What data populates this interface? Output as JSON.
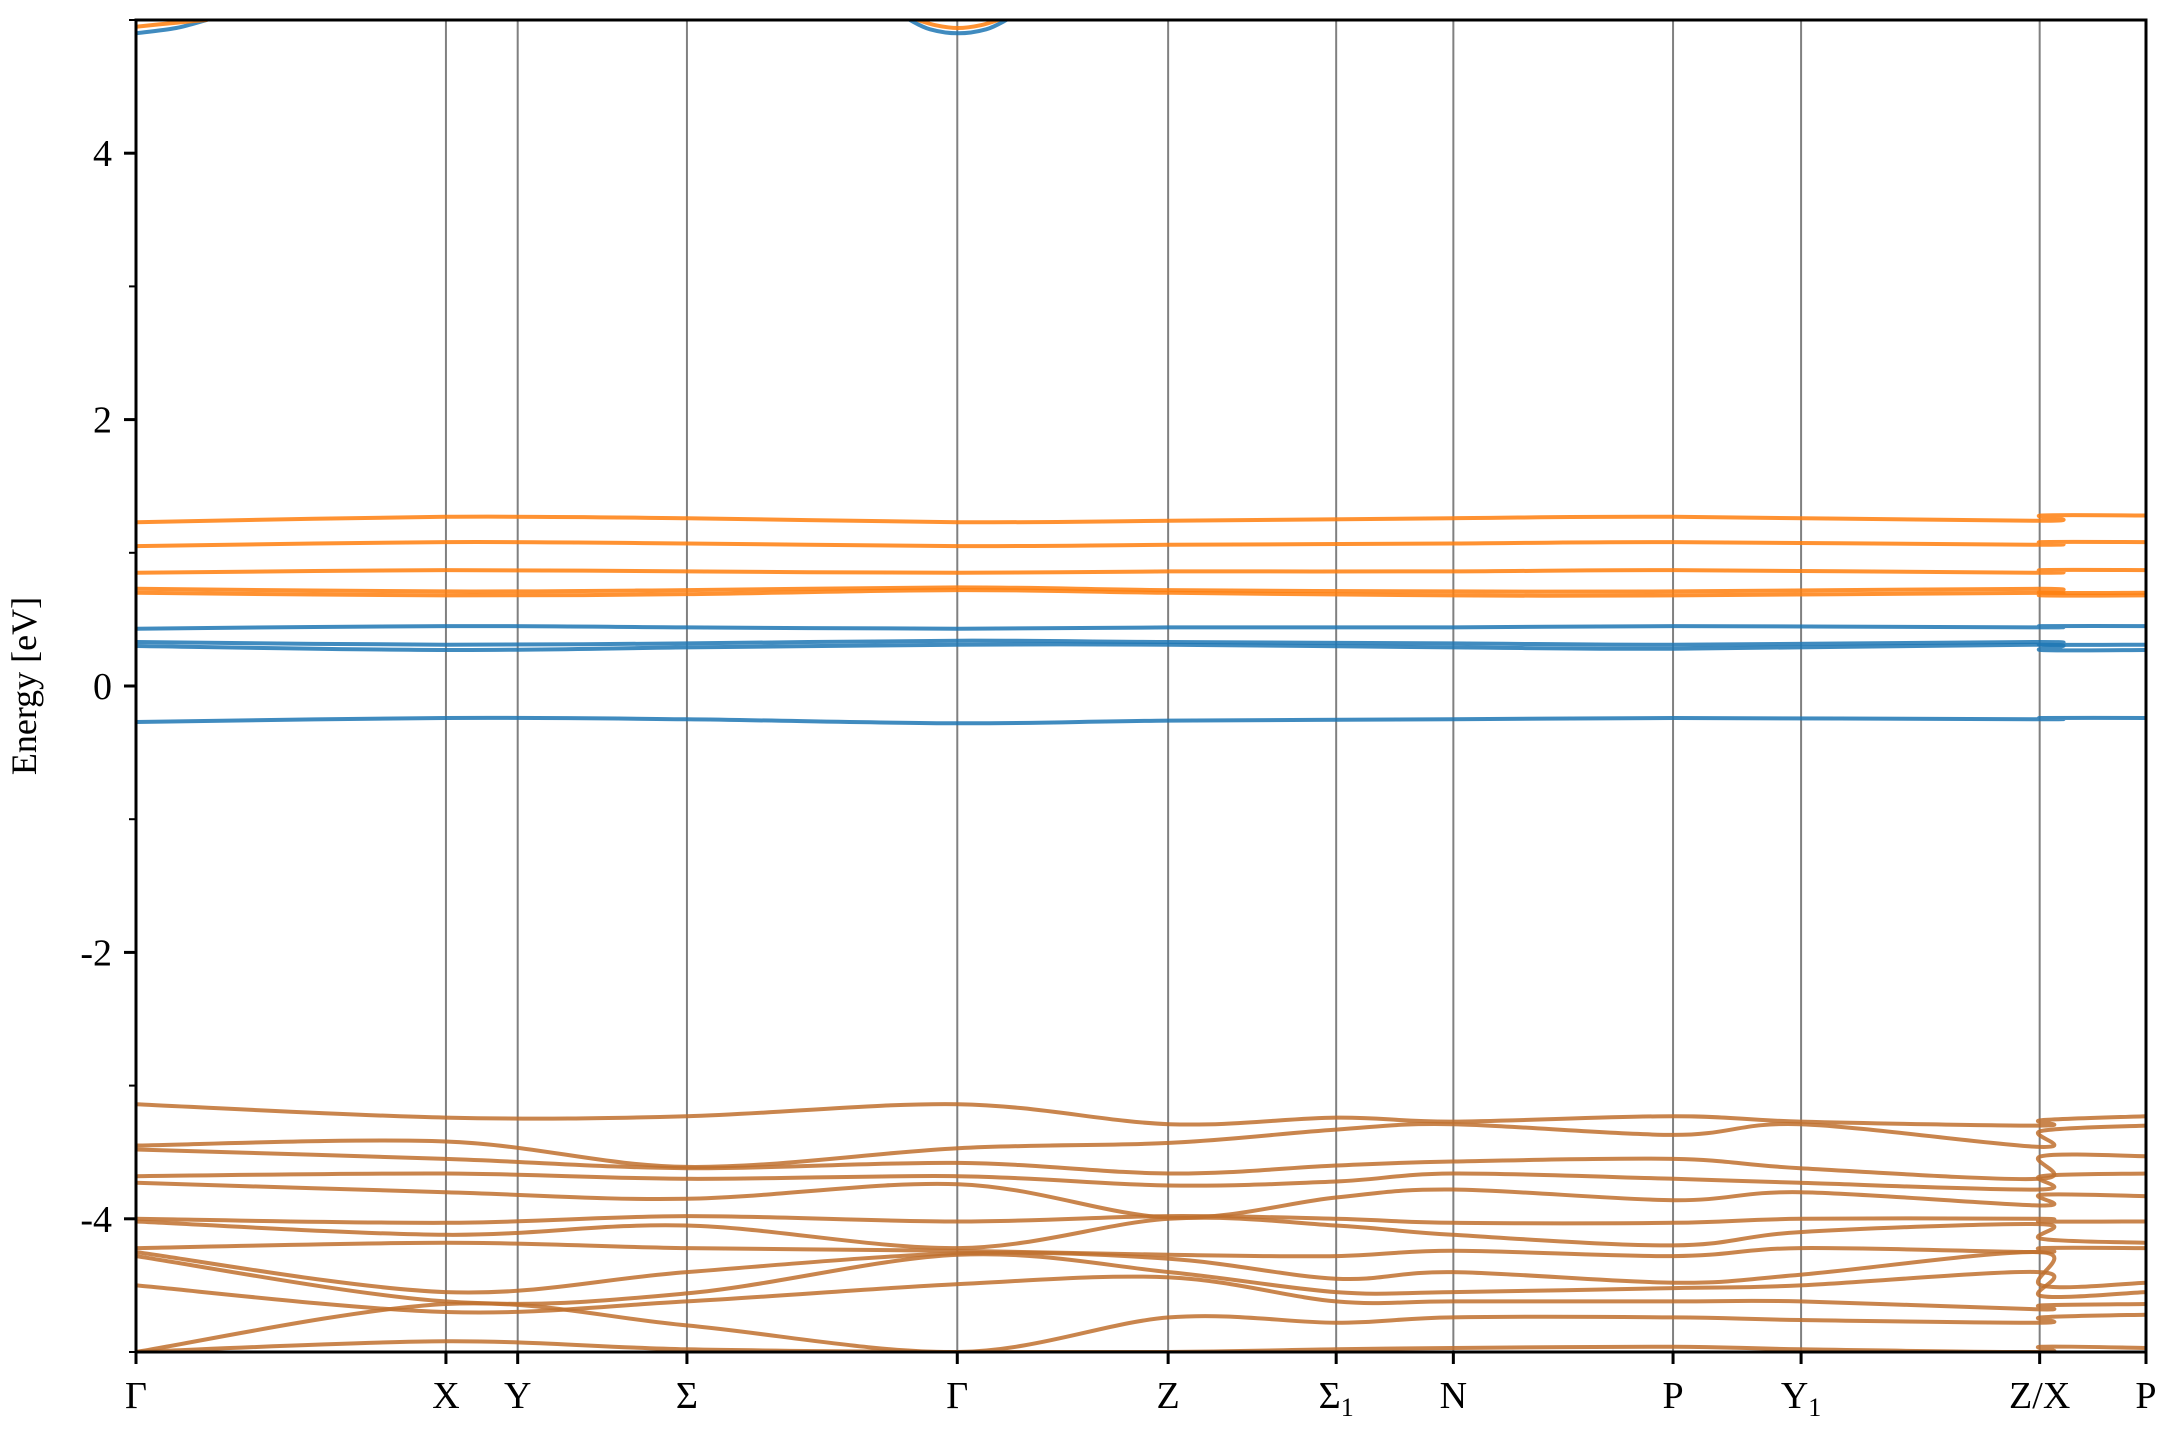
{
  "chart_data": {
    "type": "line",
    "title": "",
    "xlabel": "",
    "ylabel": "Energy [eV]",
    "ylim": [
      -5,
      5
    ],
    "y_ticks": [
      4,
      2,
      0,
      -2,
      -4
    ],
    "y_tick_labels": [
      "4",
      "2",
      "0",
      "-2",
      "-4"
    ],
    "y_minor_ticks": [
      5,
      3,
      1,
      -1,
      -3,
      -5
    ],
    "x_range": [
      0,
      1
    ],
    "x_ticks": [
      {
        "x": 0.0,
        "label": "Γ",
        "sub": ""
      },
      {
        "x": 0.1542,
        "label": "X",
        "sub": ""
      },
      {
        "x": 0.1899,
        "label": "Y",
        "sub": ""
      },
      {
        "x": 0.2741,
        "label": "Σ",
        "sub": ""
      },
      {
        "x": 0.4086,
        "label": "Γ",
        "sub": ""
      },
      {
        "x": 0.5135,
        "label": "Z",
        "sub": ""
      },
      {
        "x": 0.5971,
        "label": "Σ",
        "sub": "1"
      },
      {
        "x": 0.6554,
        "label": "N",
        "sub": ""
      },
      {
        "x": 0.7647,
        "label": "P",
        "sub": ""
      },
      {
        "x": 0.8284,
        "label": "Y",
        "sub": "1"
      },
      {
        "x": 0.9471,
        "label": "Z/X",
        "sub": ""
      },
      {
        "x": 1.0,
        "label": "P",
        "sub": ""
      }
    ],
    "grid": "vertical lines at high-symmetry points",
    "legend": "none",
    "colors": {
      "spin_up": "#1f77b4",
      "spin_down": "#ff7f0e",
      "vline": "#808080"
    },
    "series": [
      {
        "color": "#1f77b4",
        "x": [
          0,
          0.154,
          0.274,
          0.409,
          0.514,
          0.655,
          0.765,
          0.947,
          0.948,
          1.0
        ],
        "y": [
          -0.27,
          -0.24,
          -0.25,
          -0.28,
          -0.26,
          -0.25,
          -0.24,
          -0.25,
          -0.24,
          -0.24
        ]
      },
      {
        "color": "#1f77b4",
        "x": [
          0,
          0.154,
          0.274,
          0.409,
          0.514,
          0.655,
          0.765,
          0.947,
          0.948,
          1.0
        ],
        "y": [
          0.3,
          0.27,
          0.29,
          0.31,
          0.31,
          0.29,
          0.28,
          0.31,
          0.27,
          0.27
        ]
      },
      {
        "color": "#1f77b4",
        "x": [
          0,
          0.154,
          0.274,
          0.409,
          0.514,
          0.655,
          0.765,
          0.947,
          0.948,
          1.0
        ],
        "y": [
          0.33,
          0.31,
          0.32,
          0.34,
          0.33,
          0.32,
          0.31,
          0.33,
          0.31,
          0.31
        ]
      },
      {
        "color": "#1f77b4",
        "x": [
          0,
          0.154,
          0.274,
          0.409,
          0.514,
          0.655,
          0.765,
          0.947,
          0.948,
          1.0
        ],
        "y": [
          0.43,
          0.45,
          0.44,
          0.43,
          0.44,
          0.44,
          0.45,
          0.44,
          0.45,
          0.45
        ]
      },
      {
        "color": "#ff7f0e",
        "x": [
          0,
          0.154,
          0.274,
          0.409,
          0.514,
          0.655,
          0.765,
          0.947,
          0.948,
          1.0
        ],
        "y": [
          0.7,
          0.68,
          0.69,
          0.72,
          0.7,
          0.68,
          0.68,
          0.7,
          0.68,
          0.68
        ]
      },
      {
        "color": "#ff7f0e",
        "x": [
          0,
          0.154,
          0.274,
          0.409,
          0.514,
          0.655,
          0.765,
          0.947,
          0.948,
          1.0
        ],
        "y": [
          0.73,
          0.71,
          0.72,
          0.74,
          0.72,
          0.71,
          0.71,
          0.73,
          0.7,
          0.7
        ]
      },
      {
        "color": "#ff7f0e",
        "x": [
          0,
          0.154,
          0.274,
          0.409,
          0.514,
          0.655,
          0.765,
          0.947,
          0.948,
          1.0
        ],
        "y": [
          0.85,
          0.87,
          0.86,
          0.85,
          0.86,
          0.86,
          0.87,
          0.85,
          0.87,
          0.87
        ]
      },
      {
        "color": "#ff7f0e",
        "x": [
          0,
          0.154,
          0.274,
          0.409,
          0.514,
          0.655,
          0.765,
          0.947,
          0.948,
          1.0
        ],
        "y": [
          1.05,
          1.08,
          1.07,
          1.05,
          1.06,
          1.07,
          1.08,
          1.06,
          1.08,
          1.08
        ]
      },
      {
        "color": "#ff7f0e",
        "x": [
          0,
          0.154,
          0.274,
          0.409,
          0.514,
          0.655,
          0.765,
          0.947,
          0.948,
          1.0
        ],
        "y": [
          1.23,
          1.27,
          1.26,
          1.23,
          1.24,
          1.26,
          1.27,
          1.24,
          1.28,
          1.28
        ]
      },
      {
        "color": "#1f77b4",
        "x": [
          0,
          0.02,
          0.035
        ],
        "y": [
          4.9,
          4.94,
          5.0
        ]
      },
      {
        "color": "#ff7f0e",
        "x": [
          0,
          0.02,
          0.035
        ],
        "y": [
          4.95,
          4.98,
          5.0
        ]
      },
      {
        "color": "#1f77b4",
        "x": [
          0.385,
          0.395,
          0.409,
          0.423,
          0.433
        ],
        "y": [
          5.0,
          4.93,
          4.9,
          4.93,
          5.0
        ]
      },
      {
        "color": "#ff7f0e",
        "x": [
          0.389,
          0.398,
          0.409,
          0.42,
          0.429
        ],
        "y": [
          5.0,
          4.96,
          4.94,
          4.96,
          5.0
        ]
      },
      {
        "color": "#c0702e",
        "x": [
          0,
          0.154,
          0.274,
          0.409,
          0.514,
          0.597,
          0.655,
          0.765,
          0.828,
          0.947,
          0.948,
          1.0
        ],
        "y": [
          -3.14,
          -3.24,
          -3.23,
          -3.14,
          -3.29,
          -3.24,
          -3.27,
          -3.23,
          -3.27,
          -3.3,
          -3.26,
          -3.23
        ]
      },
      {
        "color": "#c0702e",
        "x": [
          0,
          0.154,
          0.274,
          0.409,
          0.514,
          0.597,
          0.655,
          0.765,
          0.828,
          0.947,
          0.948,
          1.0
        ],
        "y": [
          -3.45,
          -3.42,
          -3.61,
          -3.47,
          -3.43,
          -3.33,
          -3.29,
          -3.37,
          -3.29,
          -3.46,
          -3.34,
          -3.3
        ]
      },
      {
        "color": "#c0702e",
        "x": [
          0,
          0.154,
          0.274,
          0.409,
          0.514,
          0.597,
          0.655,
          0.765,
          0.828,
          0.947,
          0.948,
          1.0
        ],
        "y": [
          -3.48,
          -3.55,
          -3.62,
          -3.58,
          -3.66,
          -3.6,
          -3.57,
          -3.55,
          -3.62,
          -3.7,
          -3.53,
          -3.53
        ]
      },
      {
        "color": "#c0702e",
        "x": [
          0,
          0.154,
          0.274,
          0.409,
          0.514,
          0.597,
          0.655,
          0.765,
          0.828,
          0.947,
          0.948,
          1.0
        ],
        "y": [
          -3.68,
          -3.66,
          -3.7,
          -3.68,
          -3.75,
          -3.72,
          -3.66,
          -3.7,
          -3.73,
          -3.78,
          -3.68,
          -3.66
        ]
      },
      {
        "color": "#c0702e",
        "x": [
          0,
          0.154,
          0.274,
          0.409,
          0.514,
          0.597,
          0.655,
          0.765,
          0.828,
          0.947,
          0.948,
          1.0
        ],
        "y": [
          -3.73,
          -3.8,
          -3.85,
          -3.74,
          -3.99,
          -3.84,
          -3.78,
          -3.86,
          -3.8,
          -3.9,
          -3.82,
          -3.83
        ]
      },
      {
        "color": "#c0702e",
        "x": [
          0,
          0.154,
          0.274,
          0.409,
          0.514,
          0.597,
          0.655,
          0.765,
          0.828,
          0.947,
          0.948,
          1.0
        ],
        "y": [
          -4.0,
          -4.03,
          -3.98,
          -4.02,
          -3.98,
          -4.0,
          -4.03,
          -4.03,
          -4.0,
          -4.0,
          -4.02,
          -4.02
        ]
      },
      {
        "color": "#c0702e",
        "x": [
          0,
          0.154,
          0.274,
          0.409,
          0.514,
          0.597,
          0.655,
          0.765,
          0.828,
          0.947,
          0.948,
          1.0
        ],
        "y": [
          -4.02,
          -4.12,
          -4.05,
          -4.22,
          -4.0,
          -4.05,
          -4.12,
          -4.2,
          -4.1,
          -4.04,
          -4.15,
          -4.18
        ]
      },
      {
        "color": "#c0702e",
        "x": [
          0,
          0.154,
          0.274,
          0.409,
          0.514,
          0.597,
          0.655,
          0.765,
          0.828,
          0.947,
          0.948,
          1.0
        ],
        "y": [
          -4.22,
          -4.18,
          -4.22,
          -4.24,
          -4.27,
          -4.28,
          -4.24,
          -4.28,
          -4.22,
          -4.25,
          -4.22,
          -4.22
        ]
      },
      {
        "color": "#c0702e",
        "x": [
          0,
          0.154,
          0.274,
          0.409,
          0.514,
          0.597,
          0.655,
          0.765,
          0.828,
          0.947,
          0.948,
          1.0
        ],
        "y": [
          -4.25,
          -4.55,
          -4.4,
          -4.26,
          -4.3,
          -4.45,
          -4.4,
          -4.48,
          -4.42,
          -4.25,
          -4.5,
          -4.48
        ]
      },
      {
        "color": "#c0702e",
        "x": [
          0,
          0.154,
          0.274,
          0.409,
          0.514,
          0.597,
          0.655,
          0.765,
          0.828,
          0.947,
          0.948,
          1.0
        ],
        "y": [
          -4.28,
          -4.62,
          -4.56,
          -4.27,
          -4.4,
          -4.55,
          -4.55,
          -4.52,
          -4.5,
          -4.4,
          -4.58,
          -4.55
        ]
      },
      {
        "color": "#c0702e",
        "x": [
          0,
          0.154,
          0.274,
          0.409,
          0.514,
          0.597,
          0.655,
          0.765,
          0.828,
          0.947,
          0.948,
          1.0
        ],
        "y": [
          -4.5,
          -4.7,
          -4.62,
          -4.49,
          -4.44,
          -4.62,
          -4.62,
          -4.62,
          -4.62,
          -4.68,
          -4.65,
          -4.64
        ]
      },
      {
        "color": "#c0702e",
        "x": [
          0,
          0.154,
          0.274,
          0.409,
          0.514,
          0.597,
          0.655,
          0.765,
          0.828,
          0.947,
          0.948,
          1.0
        ],
        "y": [
          -5.0,
          -4.64,
          -4.8,
          -5.0,
          -4.74,
          -4.78,
          -4.74,
          -4.74,
          -4.76,
          -4.78,
          -4.74,
          -4.72
        ]
      },
      {
        "color": "#c0702e",
        "x": [
          0,
          0.154,
          0.274,
          0.409,
          0.514,
          0.597,
          0.655,
          0.765,
          0.828,
          0.947,
          0.948,
          1.0
        ],
        "y": [
          -5.0,
          -4.92,
          -4.98,
          -5.0,
          -5.0,
          -4.98,
          -4.97,
          -4.96,
          -4.98,
          -5.0,
          -4.96,
          -4.97
        ]
      }
    ]
  }
}
